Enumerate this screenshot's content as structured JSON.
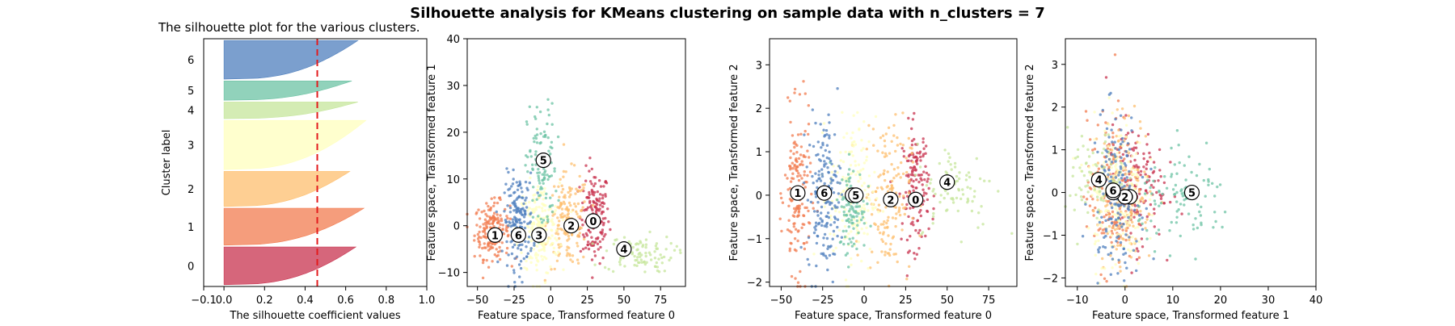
{
  "figure": {
    "suptitle": "Silhouette analysis for KMeans clustering on sample data with n_clusters = 7"
  },
  "palette": [
    "#c8334f",
    "#f27c50",
    "#fdbf6f",
    "#ffffbe",
    "#c5e69b",
    "#6cc3a4",
    "#4f7fbd"
  ],
  "chart_data": [
    {
      "type": "area",
      "kind": "silhouette",
      "title": "The silhouette plot for the various clusters.",
      "xlabel": "The silhouette coefficient values",
      "ylabel": "Cluster label",
      "xlim": [
        -0.1,
        1.0
      ],
      "xticks": [
        -0.1,
        0.0,
        0.2,
        0.4,
        0.6,
        0.8,
        1.0
      ],
      "xtick_labels": [
        "−0.1",
        "0.0",
        "0.2",
        "0.4",
        "0.6",
        "0.8",
        "1.0"
      ],
      "average_silhouette": 0.46,
      "clusters": [
        {
          "label": "0",
          "size": 215,
          "max": 0.65,
          "min": 0.0
        },
        {
          "label": "1",
          "size": 210,
          "max": 0.69,
          "min": 0.0
        },
        {
          "label": "2",
          "size": 200,
          "max": 0.62,
          "min": 0.0
        },
        {
          "label": "3",
          "size": 280,
          "max": 0.7,
          "min": 0.0
        },
        {
          "label": "4",
          "size": 95,
          "max": 0.66,
          "min": 0.0
        },
        {
          "label": "5",
          "size": 110,
          "max": 0.63,
          "min": 0.0
        },
        {
          "label": "6",
          "size": 220,
          "max": 0.66,
          "min": 0.0
        }
      ],
      "grid": false
    },
    {
      "type": "scatter",
      "xlabel": "Feature space, Transformed feature 0",
      "ylabel": "Feature space, Transformed feature 1",
      "xlim": [
        -57,
        92
      ],
      "ylim": [
        -13,
        40
      ],
      "xticks": [
        -50,
        -25,
        0,
        25,
        50,
        75
      ],
      "yticks": [
        -10,
        0,
        10,
        20,
        30,
        40
      ],
      "centers": [
        {
          "label": "0",
          "x": 29,
          "y": 1
        },
        {
          "label": "1",
          "x": -38,
          "y": -2
        },
        {
          "label": "2",
          "x": 14,
          "y": 0
        },
        {
          "label": "3",
          "x": -8,
          "y": -2
        },
        {
          "label": "4",
          "x": 50,
          "y": -5
        },
        {
          "label": "5",
          "x": -5,
          "y": 14
        },
        {
          "label": "6",
          "x": -22,
          "y": -2
        }
      ],
      "clusters": [
        {
          "cluster": 0,
          "cx": 30,
          "cy": 2,
          "sx": 5,
          "sy": 5,
          "n": 160
        },
        {
          "cluster": 1,
          "cx": -40,
          "cy": -1,
          "sx": 6,
          "sy": 3,
          "n": 190
        },
        {
          "cluster": 2,
          "cx": 12,
          "cy": 1,
          "sx": 7,
          "sy": 5,
          "n": 160
        },
        {
          "cluster": 3,
          "cx": -8,
          "cy": -1,
          "sx": 7,
          "sy": 5,
          "n": 190
        },
        {
          "cluster": 4,
          "cx": 60,
          "cy": -6,
          "sx": 12,
          "sy": 2,
          "n": 90
        },
        {
          "cluster": 5,
          "cx": -6,
          "cy": 12,
          "sx": 5,
          "sy": 7,
          "n": 110
        },
        {
          "cluster": 6,
          "cx": -22,
          "cy": 1,
          "sx": 5,
          "sy": 5,
          "n": 170
        }
      ],
      "grid": false
    },
    {
      "type": "scatter",
      "xlabel": "Feature space, Transformed feature 0",
      "ylabel": "Feature space, Transformed feature 2",
      "xlim": [
        -57,
        92
      ],
      "ylim": [
        -2.1,
        3.6
      ],
      "xticks": [
        -50,
        -25,
        0,
        25,
        50,
        75
      ],
      "yticks": [
        -2,
        -1,
        0,
        1,
        2,
        3
      ],
      "centers": [
        {
          "label": "0",
          "x": 31,
          "y": -0.1
        },
        {
          "label": "1",
          "x": -40,
          "y": 0.05
        },
        {
          "label": "2",
          "x": 16,
          "y": -0.1
        },
        {
          "label": "3",
          "x": -7,
          "y": 0.0
        },
        {
          "label": "4",
          "x": 50,
          "y": 0.3
        },
        {
          "label": "5",
          "x": -5,
          "y": 0.0
        },
        {
          "label": "6",
          "x": -24,
          "y": 0.05
        }
      ],
      "clusters": [
        {
          "cluster": 0,
          "cx": 31,
          "cy": 0.2,
          "sx": 4,
          "sy": 0.7,
          "n": 150
        },
        {
          "cluster": 1,
          "cx": -40,
          "cy": 0.0,
          "sx": 4,
          "sy": 0.9,
          "n": 170
        },
        {
          "cluster": 2,
          "cx": 14,
          "cy": 0.0,
          "sx": 7,
          "sy": 0.9,
          "n": 150
        },
        {
          "cluster": 3,
          "cx": -7,
          "cy": 0.0,
          "sx": 7,
          "sy": 0.9,
          "n": 170
        },
        {
          "cluster": 4,
          "cx": 55,
          "cy": 0.2,
          "sx": 12,
          "sy": 0.5,
          "n": 80
        },
        {
          "cluster": 5,
          "cx": -7,
          "cy": -0.3,
          "sx": 4,
          "sy": 0.5,
          "n": 100
        },
        {
          "cluster": 6,
          "cx": -24,
          "cy": 0.0,
          "sx": 5,
          "sy": 0.9,
          "n": 170
        }
      ],
      "grid": false
    },
    {
      "type": "scatter",
      "xlabel": "Feature space, Transformed feature 1",
      "ylabel": "Feature space, Transformed feature 2",
      "xlim": [
        -12.5,
        40
      ],
      "ylim": [
        -2.2,
        3.6
      ],
      "xticks": [
        -10,
        0,
        10,
        20,
        30,
        40
      ],
      "yticks": [
        -2,
        -1,
        0,
        1,
        2,
        3
      ],
      "centers": [
        {
          "label": "0",
          "x": 1,
          "y": -0.1
        },
        {
          "label": "1",
          "x": -2.5,
          "y": 0.05
        },
        {
          "label": "2",
          "x": 0,
          "y": -0.1
        },
        {
          "label": "3",
          "x": -2.5,
          "y": 0.0
        },
        {
          "label": "4",
          "x": -5.5,
          "y": 0.3
        },
        {
          "label": "5",
          "x": 14,
          "y": 0.0
        },
        {
          "label": "6",
          "x": -2.5,
          "y": 0.05
        }
      ],
      "clusters": [
        {
          "cluster": 0,
          "cx": 2,
          "cy": 0.2,
          "sx": 3,
          "sy": 0.7,
          "n": 150
        },
        {
          "cluster": 1,
          "cx": -3,
          "cy": 0.0,
          "sx": 2.5,
          "sy": 0.9,
          "n": 170
        },
        {
          "cluster": 2,
          "cx": 0,
          "cy": 0.0,
          "sx": 3,
          "sy": 0.9,
          "n": 150
        },
        {
          "cluster": 3,
          "cx": -2,
          "cy": 0.0,
          "sx": 3,
          "sy": 0.9,
          "n": 170
        },
        {
          "cluster": 4,
          "cx": -6,
          "cy": 0.2,
          "sx": 3,
          "sy": 0.6,
          "n": 80
        },
        {
          "cluster": 5,
          "cx": 13,
          "cy": -0.2,
          "sx": 5,
          "sy": 0.5,
          "n": 100
        },
        {
          "cluster": 6,
          "cx": -2,
          "cy": 0.0,
          "sx": 2.5,
          "sy": 0.9,
          "n": 170
        }
      ],
      "grid": false
    }
  ]
}
